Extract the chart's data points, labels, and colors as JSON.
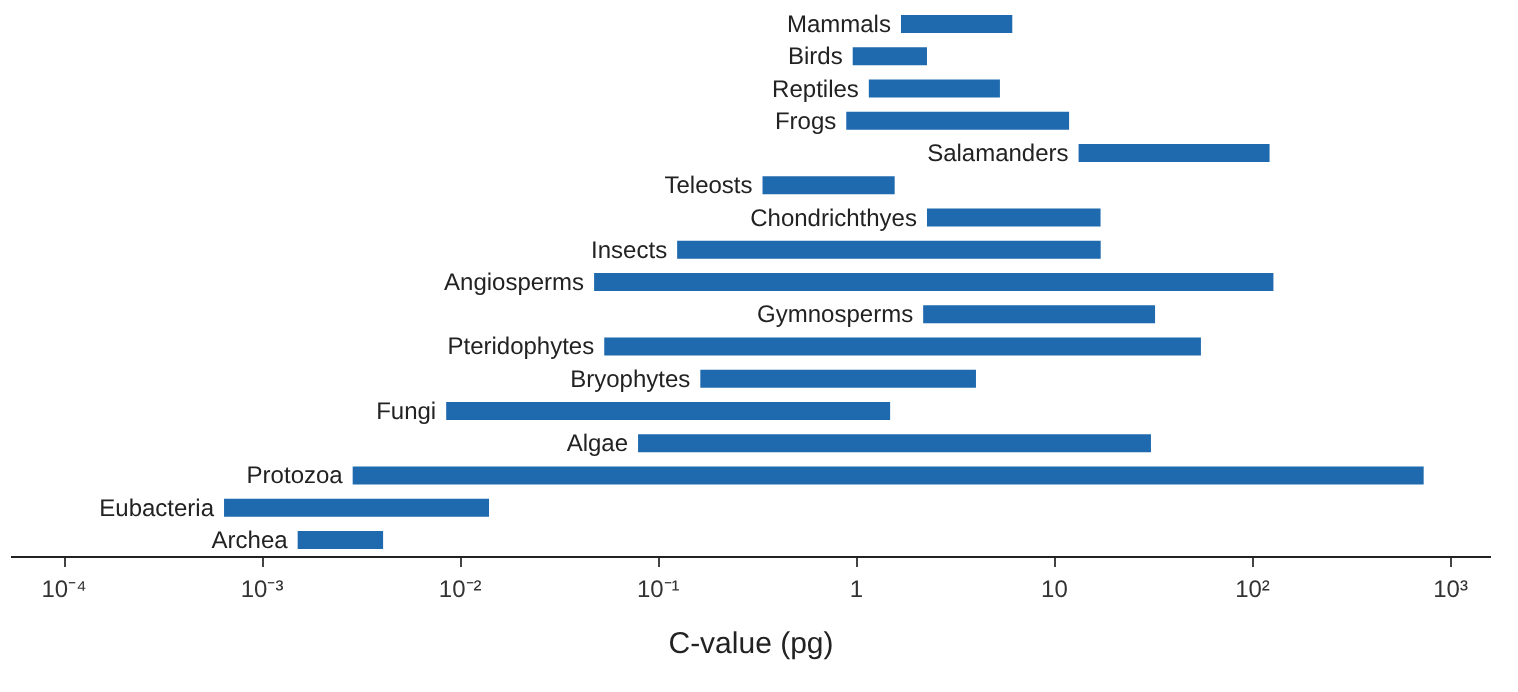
{
  "chart_data": {
    "type": "bar",
    "orientation": "horizontal",
    "log": "x",
    "xlabel": "C-value (pg)",
    "categories": [
      "Mammals",
      "Birds",
      "Reptiles",
      "Frogs",
      "Salamanders",
      "Teleosts",
      "Chondrichthyes",
      "Insects",
      "Angiosperms",
      "Gymnosperms",
      "Pteridophytes",
      "Bryophytes",
      "Fungi",
      "Algae",
      "Protozoa",
      "Eubacteria",
      "Archea"
    ],
    "base": [
      1.7,
      0.97,
      1.17,
      0.9,
      13.4,
      0.34,
      2.3,
      0.126,
      0.048,
      2.2,
      0.054,
      0.165,
      0.0086,
      0.08,
      0.0029,
      0.00065,
      0.00153
    ],
    "values": [
      4.5,
      1.33,
      4.2,
      11.1,
      110,
      1.24,
      15,
      17.2,
      129,
      30.4,
      55.5,
      3.9,
      1.49,
      31,
      740,
      0.0135,
      0.0026
    ],
    "color": "#1f6aae",
    "xlim": [
      5.4e-05,
      1600
    ],
    "xticks": [
      {
        "value": 0.0001,
        "label": "10⁻⁴"
      },
      {
        "value": 0.001,
        "label": "10⁻³"
      },
      {
        "value": 0.01,
        "label": "10⁻²"
      },
      {
        "value": 0.1,
        "label": "10⁻¹"
      },
      1,
      10,
      {
        "value": 100,
        "label": "10²"
      },
      {
        "value": 1000,
        "label": "10³"
      }
    ],
    "tick_labels": "x",
    "grid": false
  }
}
